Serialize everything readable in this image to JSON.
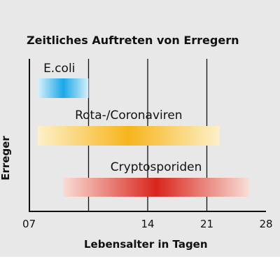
{
  "chart_data": {
    "type": "bar",
    "orientation": "horizontal",
    "title": "Zeitliches Auftreten von Erregern",
    "xlabel": "Lebensalter in Tagen",
    "ylabel": "Erreger",
    "xlim": [
      0,
      28
    ],
    "x_tick_labels": [
      "07",
      "14",
      "21",
      "28"
    ],
    "x_ticks": [
      7,
      14,
      21,
      28
    ],
    "grid": "vertical",
    "bars": [
      {
        "label": "E.coli",
        "start": 1,
        "end": 7,
        "color": "#1aa8e8",
        "edge": "#d8f0fb"
      },
      {
        "label": "Rota-/Coronaviren",
        "start": 1,
        "end": 22.5,
        "color": "#f7b51c",
        "edge": "#fdf0c8"
      },
      {
        "label": "Cryptosporiden",
        "start": 4,
        "end": 26,
        "color": "#d9261c",
        "edge": "#f8ddd5"
      }
    ]
  }
}
